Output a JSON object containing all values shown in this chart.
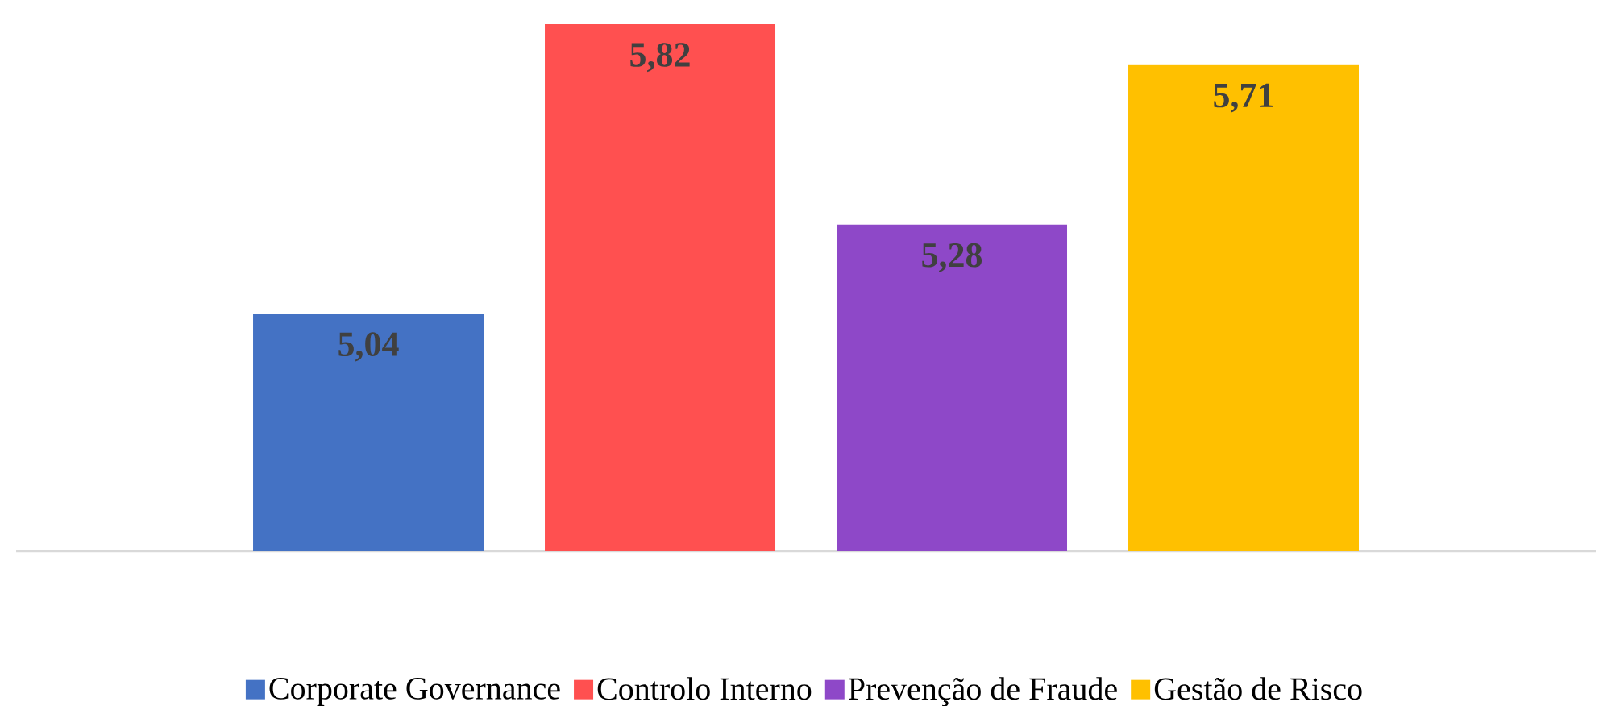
{
  "chart_data": {
    "type": "bar",
    "categories": [
      null
    ],
    "series": [
      {
        "name": "Corporate Governance",
        "color": "#4472c4",
        "values": [
          5.04
        ],
        "value_labels": [
          "5,04"
        ]
      },
      {
        "name": "Controlo Interno",
        "color": "#ff5050",
        "values": [
          5.82
        ],
        "value_labels": [
          "5,82"
        ]
      },
      {
        "name": "Prevenção de Fraude",
        "color": "#8e48c8",
        "values": [
          5.28
        ],
        "value_labels": [
          "5,28"
        ]
      },
      {
        "name": "Gestão de Risco",
        "color": "#ffc000",
        "values": [
          5.71
        ],
        "value_labels": [
          "5,71"
        ]
      }
    ],
    "ylim": [
      4.4,
      5.82
    ],
    "legend": "bottom"
  }
}
